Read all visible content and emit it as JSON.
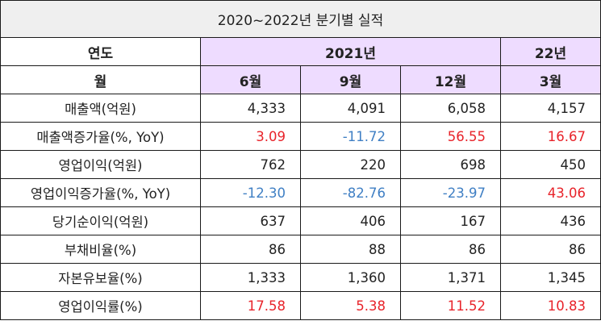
{
  "title": "2020~2022년 분기별 실적",
  "header": {
    "year_label": "연도",
    "year_2021": "2021년",
    "year_22": "22년",
    "month_label": "월",
    "months": [
      "6월",
      "9월",
      "12월",
      "3월"
    ]
  },
  "rows": [
    {
      "label": "매출액(억원)",
      "values": [
        "4,333",
        "4,091",
        "6,058",
        "4,157"
      ],
      "colors": [
        "blk",
        "blk",
        "blk",
        "blk"
      ]
    },
    {
      "label": "매출액증가율(%, YoY)",
      "values": [
        "3.09",
        "-11.72",
        "56.55",
        "16.67"
      ],
      "colors": [
        "red",
        "blue",
        "red",
        "red"
      ]
    },
    {
      "label": "영업이익(억원)",
      "values": [
        "762",
        "220",
        "698",
        "450"
      ],
      "colors": [
        "blk",
        "blk",
        "blk",
        "blk"
      ]
    },
    {
      "label": "영업이익증가율(%, YoY)",
      "values": [
        "-12.30",
        "-82.76",
        "-23.97",
        "43.06"
      ],
      "colors": [
        "blue",
        "blue",
        "blue",
        "red"
      ]
    },
    {
      "label": "당기순이익(억원)",
      "values": [
        "637",
        "406",
        "167",
        "436"
      ],
      "colors": [
        "blk",
        "blk",
        "blk",
        "blk"
      ]
    },
    {
      "label": "부채비율(%)",
      "values": [
        "86",
        "88",
        "86",
        "86"
      ],
      "colors": [
        "blk",
        "blk",
        "blk",
        "blk"
      ]
    },
    {
      "label": "자본유보율(%)",
      "values": [
        "1,333",
        "1,360",
        "1,371",
        "1,345"
      ],
      "colors": [
        "blk",
        "blk",
        "blk",
        "blk"
      ]
    },
    {
      "label": "영업이익률(%)",
      "values": [
        "17.58",
        "5.38",
        "11.52",
        "10.83"
      ],
      "colors": [
        "red",
        "red",
        "red",
        "red"
      ]
    }
  ],
  "colors": {
    "positive": "#e8232a",
    "negative": "#3f7fc4",
    "header_fill": "#eedcff",
    "title_fill": "#efefef"
  }
}
